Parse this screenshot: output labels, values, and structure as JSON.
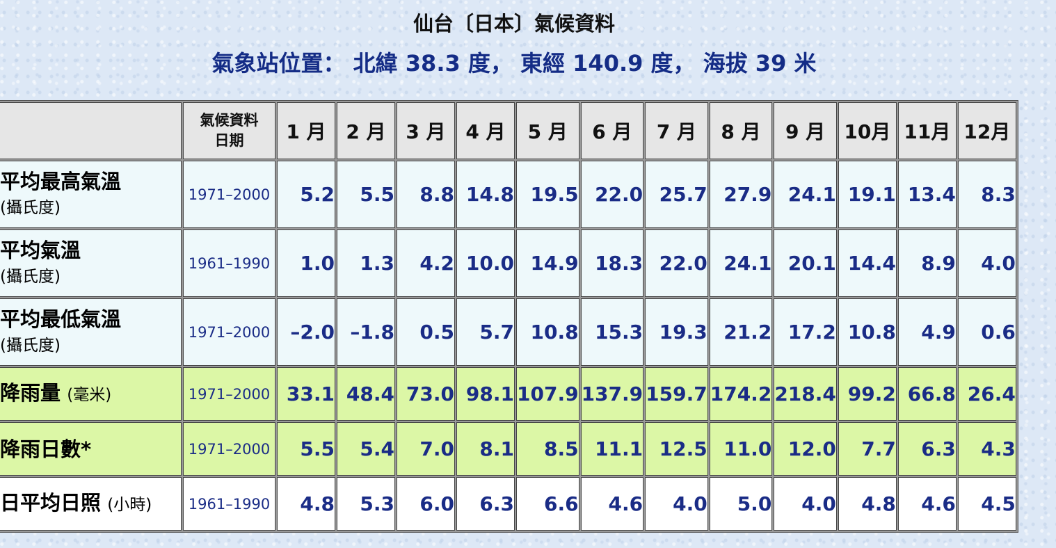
{
  "title": "仙台〔日本〕氣候資料",
  "subtitle": "氣象站位置： 北緯 38.3 度， 東經 140.9 度， 海拔 39 米",
  "table": {
    "period_header": [
      "氣候資料",
      "日期"
    ],
    "months": [
      "1 月",
      "2 月",
      "3 月",
      "4 月",
      "5 月",
      "6 月",
      "7 月",
      "8 月",
      "9 月",
      "10月",
      "11月",
      "12月"
    ],
    "rows": [
      {
        "label": "平均最高氣溫",
        "unit": "(攝氏度)",
        "period": "1971–2000",
        "values": [
          "5.2",
          "5.5",
          "8.8",
          "14.8",
          "19.5",
          "22.0",
          "25.7",
          "27.9",
          "24.1",
          "19.1",
          "13.4",
          "8.3"
        ]
      },
      {
        "label": "平均氣溫",
        "unit": "(攝氏度)",
        "period": "1961–1990",
        "values": [
          "1.0",
          "1.3",
          "4.2",
          "10.0",
          "14.9",
          "18.3",
          "22.0",
          "24.1",
          "20.1",
          "14.4",
          "8.9",
          "4.0"
        ]
      },
      {
        "label": "平均最低氣溫",
        "unit": "(攝氏度)",
        "period": "1971–2000",
        "values": [
          "–2.0",
          "–1.8",
          "0.5",
          "5.7",
          "10.8",
          "15.3",
          "19.3",
          "21.2",
          "17.2",
          "10.8",
          "4.9",
          "0.6"
        ]
      },
      {
        "label": "降雨量",
        "unit": "(毫米)",
        "period": "1971–2000",
        "values": [
          "33.1",
          "48.4",
          "73.0",
          "98.1",
          "107.9",
          "137.9",
          "159.7",
          "174.2",
          "218.4",
          "99.2",
          "66.8",
          "26.4"
        ]
      },
      {
        "label": "降雨日數*",
        "unit": "",
        "period": "1971–2000",
        "values": [
          "5.5",
          "5.4",
          "7.0",
          "8.1",
          "8.5",
          "11.1",
          "12.5",
          "11.0",
          "12.0",
          "7.7",
          "6.3",
          "4.3"
        ]
      },
      {
        "label": "日平均日照",
        "unit": "(小時)",
        "period": "1961–1990",
        "values": [
          "4.8",
          "5.3",
          "6.0",
          "6.3",
          "6.6",
          "4.6",
          "4.0",
          "5.0",
          "4.0",
          "4.8",
          "4.6",
          "4.5"
        ]
      }
    ]
  }
}
